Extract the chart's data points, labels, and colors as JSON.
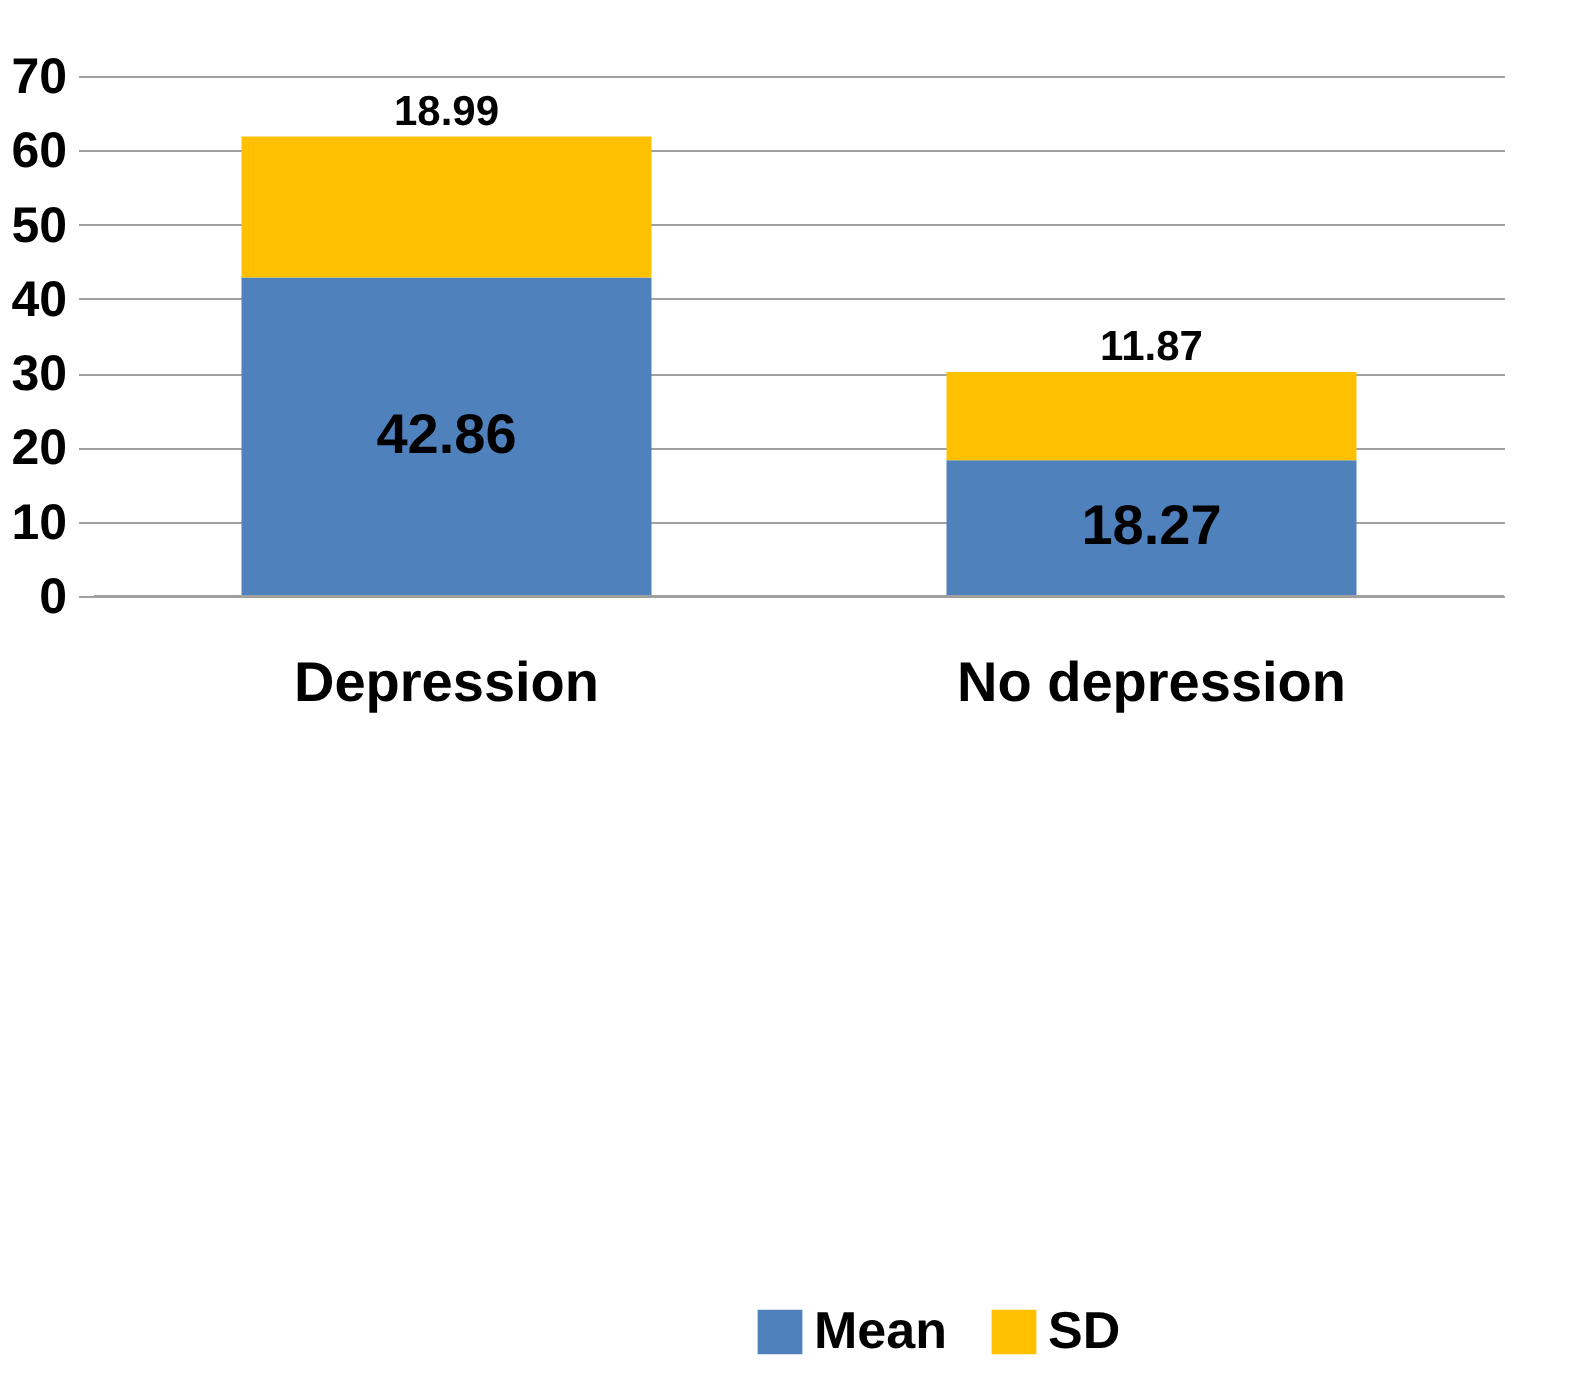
{
  "chart_data": {
    "type": "bar",
    "stacked": true,
    "categories": [
      "Depression",
      "No depression"
    ],
    "series": [
      {
        "name": "Mean",
        "color": "#4f81bd",
        "values": [
          42.86,
          18.27
        ]
      },
      {
        "name": "SD",
        "color": "#ffc000",
        "values": [
          18.99,
          11.87
        ]
      }
    ],
    "ylim": [
      0,
      70
    ],
    "yticks": [
      0,
      10,
      20,
      30,
      40,
      50,
      60,
      70
    ],
    "grid": "y",
    "legend": "bottom",
    "data_labels": true
  }
}
